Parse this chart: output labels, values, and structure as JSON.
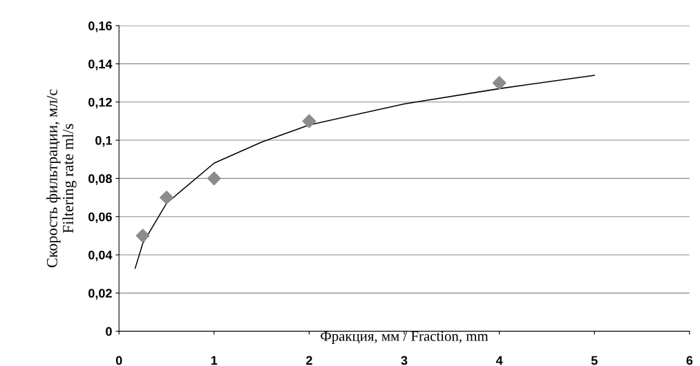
{
  "chart_data": {
    "type": "scatter",
    "xlabel": "Фракция, мм / Fraction, mm",
    "ylabel": "Скорость фильтрации, мл/с\nFiltering rate ml/s",
    "xlim": [
      0,
      6
    ],
    "xticks": [
      0,
      1,
      2,
      3,
      4,
      5,
      6
    ],
    "ylim": [
      0,
      0.16
    ],
    "yticks": [
      0,
      {
        "value": 0.02,
        "label": "0,02"
      },
      {
        "value": 0.04,
        "label": "0,04"
      },
      {
        "value": 0.06,
        "label": "0,06"
      },
      {
        "value": 0.08,
        "label": "0,08"
      },
      {
        "value": 0.1,
        "label": "0,1"
      },
      {
        "value": 0.12,
        "label": "0,12"
      },
      {
        "value": 0.14,
        "label": "0,14"
      },
      {
        "value": 0.16,
        "label": "0,16"
      }
    ],
    "grid": "y",
    "legend": false,
    "series": [
      {
        "color": "#8c8c8c",
        "marker": "diamond",
        "x": [
          0.25,
          0.5,
          1,
          2,
          4
        ],
        "values": [
          0.05,
          0.07,
          0.08,
          0.11,
          0.13
        ]
      },
      {
        "type": "line",
        "color": "#000000",
        "marker": "none",
        "line_style": "solid",
        "x": [
          0.17,
          0.25,
          0.5,
          1,
          1.5,
          2,
          3,
          4,
          5
        ],
        "values": [
          0.033,
          0.046,
          0.067,
          0.088,
          0.099,
          0.108,
          0.119,
          0.127,
          0.134
        ]
      }
    ]
  }
}
